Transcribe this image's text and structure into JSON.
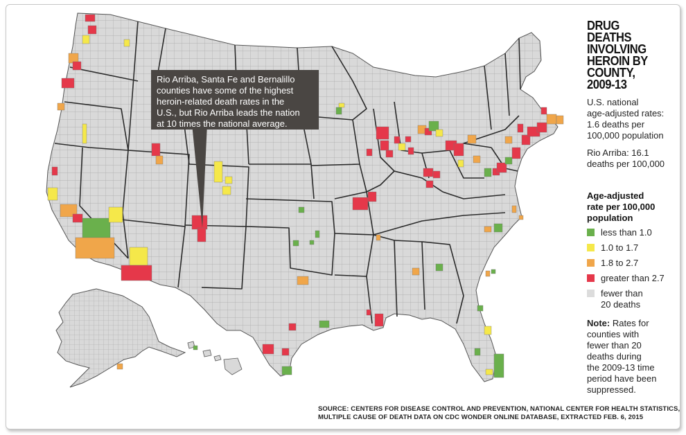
{
  "title_lines": [
    "DRUG",
    "DEATHS",
    "INVOLVING",
    "HEROIN BY",
    "COUNTY,",
    "2009-13"
  ],
  "national_rate": {
    "lines": [
      "U.S. national",
      "age-adjusted rates:",
      "1.6 deaths per",
      "100,000 population"
    ],
    "value": 1.6
  },
  "rio_arriba": {
    "lines": [
      "Rio Arriba: 16.1",
      "deaths per 100,000"
    ],
    "value": 16.1
  },
  "callout_lines": [
    "Rio Arriba, Santa Fe and Bernalillo",
    "counties have some of the highest",
    "heroin-related death rates in the",
    "U.S., but Rio Arriba leads the nation",
    "at 10 times the national average."
  ],
  "legend": {
    "title_lines": [
      "Age-adjusted",
      "rate per 100,000",
      "population"
    ],
    "items": [
      {
        "label_lines": [
          "less than 1.0"
        ],
        "color": "#6ab04c"
      },
      {
        "label_lines": [
          "1.0 to 1.7"
        ],
        "color": "#f5e84a"
      },
      {
        "label_lines": [
          "1.8 to 2.7"
        ],
        "color": "#f0a64a"
      },
      {
        "label_lines": [
          "greater than 2.7"
        ],
        "color": "#e5384a"
      },
      {
        "label_lines": [
          "fewer than",
          "20 deaths"
        ],
        "color": "#dcdcdc"
      }
    ]
  },
  "note": {
    "bold": "Note:",
    "lines": [
      " Rates for",
      "counties with",
      "fewer than 20",
      "deaths during",
      "the 2009-13 time",
      "period have been",
      "suppressed."
    ]
  },
  "source_lines": [
    "SOURCE: CENTERS FOR DISEASE CONTROL AND PREVENTION, NATIONAL CENTER FOR HEALTH STATISTICS,",
    "MULTIPLE CAUSE OF DEATH DATA ON CDC WONDER ONLINE DATABASE, EXTRACTED FEB. 6, 2015"
  ],
  "colors": {
    "land": "#d9d9d9",
    "county_line": "#a8a8a8",
    "state_line": "#2a2a2a",
    "callout_bg": "#4a4643"
  }
}
